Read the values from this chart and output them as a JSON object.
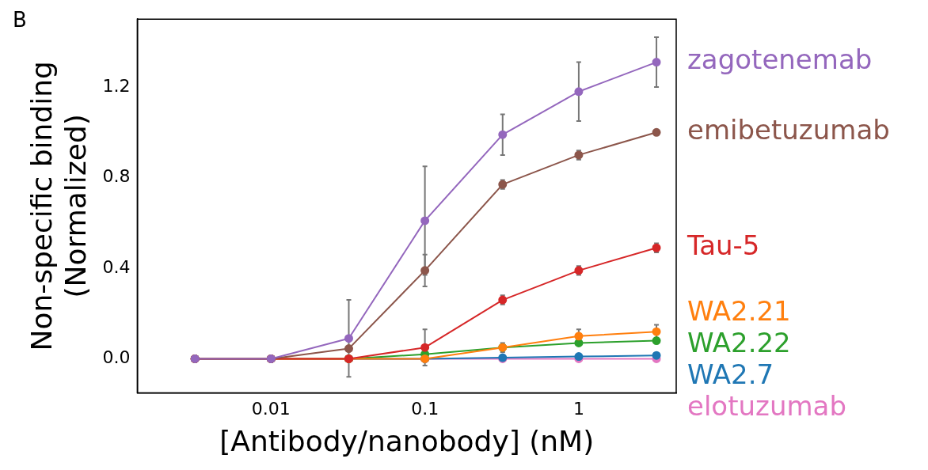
{
  "chart_data": {
    "type": "line",
    "xlabel": "[Antibody/nanobody] (nM)",
    "ylabel": "Non-specific binding\n(Normalized)",
    "annotations": [
      "B"
    ],
    "log": "x",
    "x": [
      0.0032,
      0.01,
      0.032,
      0.1,
      0.32,
      1,
      3.2
    ],
    "xlim": [
      0.00135,
      4.3
    ],
    "xticks": [
      0.01,
      0.1,
      1
    ],
    "ylim": [
      -0.15,
      1.5
    ],
    "yticks": [
      {
        "value": 0,
        "label": "0.0"
      },
      0.4,
      0.8,
      1.2
    ],
    "grid": false,
    "legend": false,
    "marker": "circle",
    "line_style": "solid",
    "series": [
      {
        "name": "zagotenemab",
        "color": "#9467bd",
        "values": [
          0,
          0,
          0.09,
          0.61,
          0.99,
          1.18,
          1.31
        ],
        "errors": [
          null,
          null,
          0.17,
          0.24,
          0.09,
          0.13,
          0.11
        ]
      },
      {
        "name": "emibetuzumab",
        "color": "#8c564b",
        "values": [
          0,
          0,
          0.045,
          0.39,
          0.77,
          0.9,
          1.0
        ],
        "errors": [
          null,
          null,
          null,
          0.07,
          0.02,
          0.02,
          null
        ]
      },
      {
        "name": "Tau-5",
        "color": "#d62728",
        "values": [
          0,
          0,
          0,
          0.05,
          0.26,
          0.39,
          0.49
        ],
        "errors": [
          null,
          null,
          null,
          0.08,
          0.02,
          0.02,
          0.02
        ]
      },
      {
        "name": "WA2.21",
        "color": "#ff7f0e",
        "values": [
          0,
          0,
          0,
          0,
          0.05,
          0.1,
          0.12
        ],
        "errors": [
          null,
          null,
          null,
          null,
          0.02,
          0.03,
          0.03
        ]
      },
      {
        "name": "WA2.22",
        "color": "#2ca02c",
        "values": [
          0,
          0,
          0,
          0.02,
          0.05,
          0.07,
          0.08
        ]
      },
      {
        "name": "WA2.7",
        "color": "#1f77b4",
        "values": [
          null,
          null,
          0,
          0,
          0.005,
          0.01,
          0.015
        ]
      },
      {
        "name": "elotuzumab",
        "color": "#e377c2",
        "values": [
          0,
          0,
          0,
          0,
          0,
          0,
          0
        ]
      }
    ]
  }
}
